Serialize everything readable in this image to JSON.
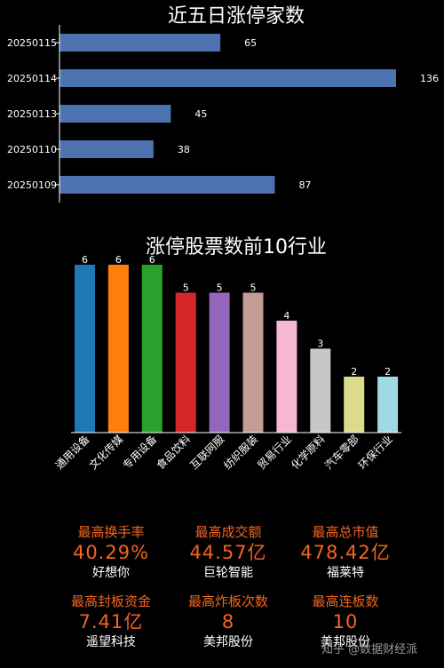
{
  "chart_data": [
    {
      "type": "bar",
      "orientation": "horizontal",
      "title": "近五日涨停家数",
      "categories": [
        "20250115",
        "20250114",
        "20250113",
        "20250110",
        "20250109"
      ],
      "values": [
        65,
        136,
        45,
        38,
        87
      ],
      "xlim": [
        0,
        136
      ],
      "color": "#4c72b0",
      "grid": false
    },
    {
      "type": "bar",
      "title": "涨停股票数前10行业",
      "categories": [
        "通用设备",
        "文化传媒",
        "专用设备",
        "食品饮料",
        "互联网服",
        "纺织服装",
        "贸易行业",
        "化学原料",
        "汽车零部",
        "环保行业"
      ],
      "values": [
        6,
        6,
        6,
        5,
        5,
        5,
        4,
        3,
        2,
        2
      ],
      "ylim": [
        0,
        6
      ],
      "colors": [
        "#1f77b4",
        "#ff7f0e",
        "#2ca02c",
        "#d62728",
        "#9467bd",
        "#c49c94",
        "#f7b6d2",
        "#c7c7c7",
        "#dbdb8d",
        "#9edae5"
      ],
      "grid": false
    }
  ],
  "stats": [
    {
      "label": "最高换手率",
      "value": "40.29%",
      "name": "好想你"
    },
    {
      "label": "最高成交额",
      "value": "44.57亿",
      "name": "巨轮智能"
    },
    {
      "label": "最高总市值",
      "value": "478.42亿",
      "name": "福莱特"
    },
    {
      "label": "最高封板资金",
      "value": "7.41亿",
      "name": "遥望科技"
    },
    {
      "label": "最高炸板次数",
      "value": "8",
      "name": "美邦股份"
    },
    {
      "label": "最高连板数",
      "value": "10",
      "name": "美邦股份"
    }
  ],
  "watermark": "知乎 @数据财经派"
}
